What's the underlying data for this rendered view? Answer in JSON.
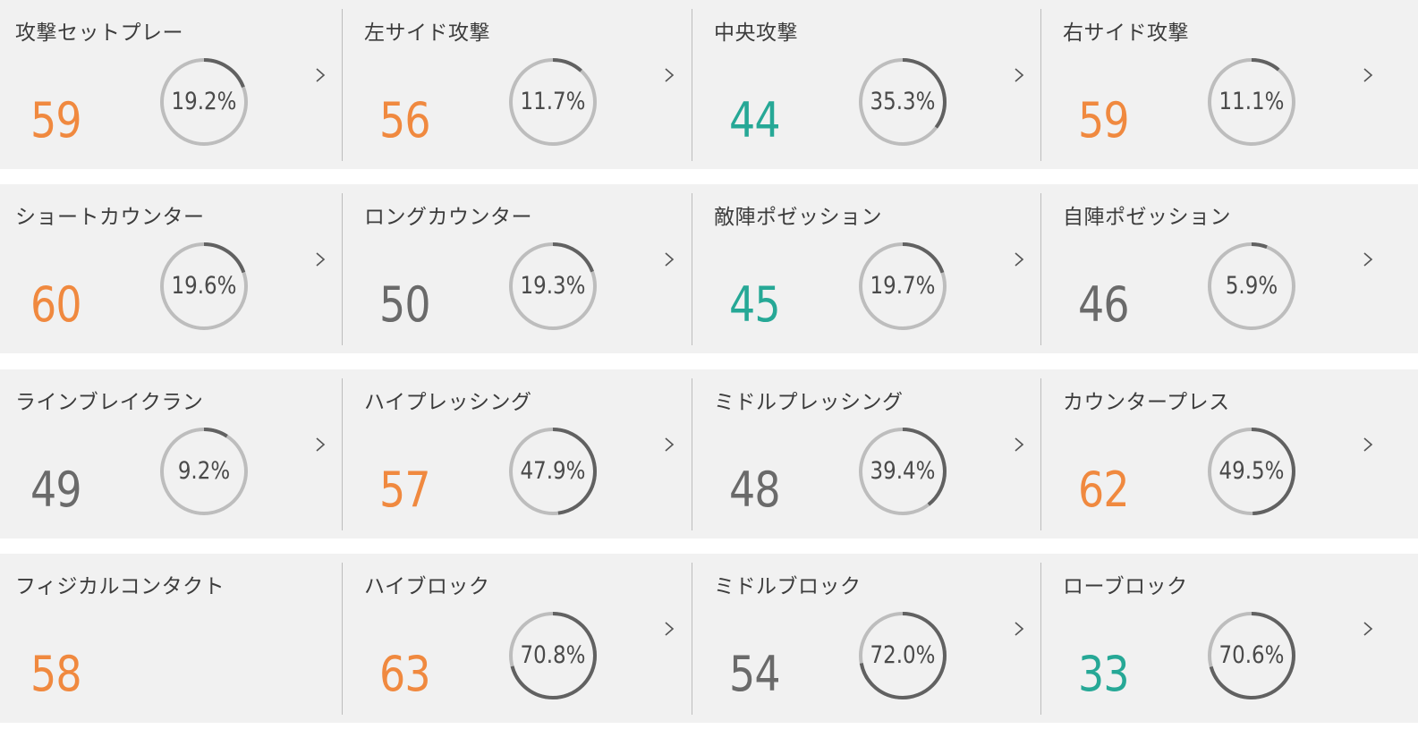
{
  "colors": {
    "above_average": "#f0893f",
    "average": "#6a6a6a",
    "below_average": "#26a896",
    "ring_track": "#bdbdbd",
    "ring_fill": "#616161"
  },
  "rows": [
    [
      {
        "label": "攻撃セットプレー",
        "score": "59",
        "tone": "above_average",
        "percent": "19.2%",
        "percent_value": 19.2,
        "chevron": true
      },
      {
        "label": "左サイド攻撃",
        "score": "56",
        "tone": "above_average",
        "percent": "11.7%",
        "percent_value": 11.7,
        "chevron": true
      },
      {
        "label": "中央攻撃",
        "score": "44",
        "tone": "below_average",
        "percent": "35.3%",
        "percent_value": 35.3,
        "chevron": true
      },
      {
        "label": "右サイド攻撃",
        "score": "59",
        "tone": "above_average",
        "percent": "11.1%",
        "percent_value": 11.1,
        "chevron": true
      }
    ],
    [
      {
        "label": "ショートカウンター",
        "score": "60",
        "tone": "above_average",
        "percent": "19.6%",
        "percent_value": 19.6,
        "chevron": true
      },
      {
        "label": "ロングカウンター",
        "score": "50",
        "tone": "average",
        "percent": "19.3%",
        "percent_value": 19.3,
        "chevron": true
      },
      {
        "label": "敵陣ポゼッション",
        "score": "45",
        "tone": "below_average",
        "percent": "19.7%",
        "percent_value": 19.7,
        "chevron": true
      },
      {
        "label": "自陣ポゼッション",
        "score": "46",
        "tone": "average",
        "percent": "5.9%",
        "percent_value": 5.9,
        "chevron": true
      }
    ],
    [
      {
        "label": "ラインブレイクラン",
        "score": "49",
        "tone": "average",
        "percent": "9.2%",
        "percent_value": 9.2,
        "chevron": true
      },
      {
        "label": "ハイプレッシング",
        "score": "57",
        "tone": "above_average",
        "percent": "47.9%",
        "percent_value": 47.9,
        "chevron": true
      },
      {
        "label": "ミドルプレッシング",
        "score": "48",
        "tone": "average",
        "percent": "39.4%",
        "percent_value": 39.4,
        "chevron": true
      },
      {
        "label": "カウンタープレス",
        "score": "62",
        "tone": "above_average",
        "percent": "49.5%",
        "percent_value": 49.5,
        "chevron": true
      }
    ],
    [
      {
        "label": "フィジカルコンタクト",
        "score": "58",
        "tone": "above_average",
        "percent": "",
        "percent_value": null,
        "chevron": false
      },
      {
        "label": "ハイブロック",
        "score": "63",
        "tone": "above_average",
        "percent": "70.8%",
        "percent_value": 70.8,
        "chevron": true
      },
      {
        "label": "ミドルブロック",
        "score": "54",
        "tone": "average",
        "percent": "72.0%",
        "percent_value": 72.0,
        "chevron": true
      },
      {
        "label": "ローブロック",
        "score": "33",
        "tone": "below_average",
        "percent": "70.6%",
        "percent_value": 70.6,
        "chevron": true
      }
    ]
  ]
}
